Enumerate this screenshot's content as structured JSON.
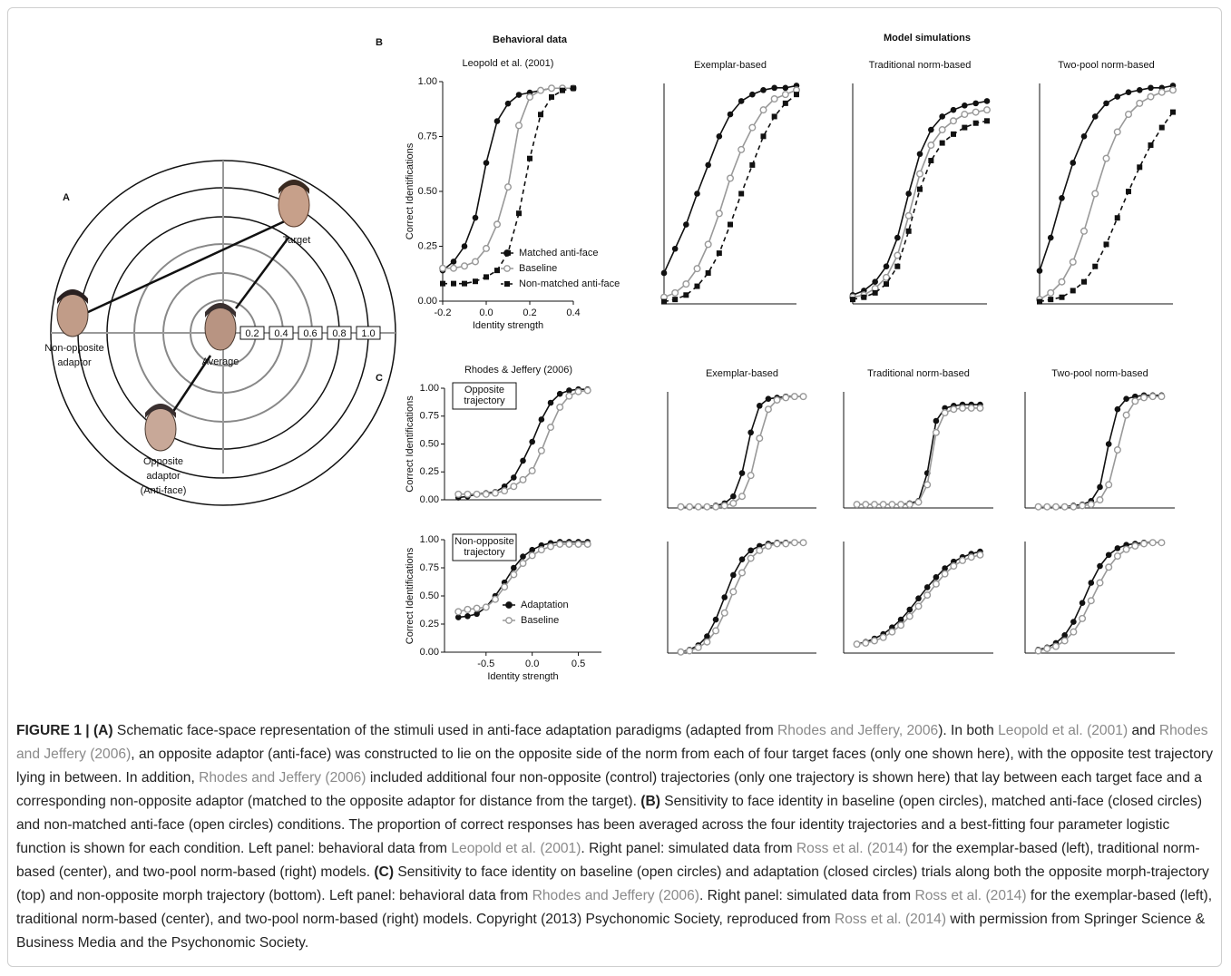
{
  "panel_a": {
    "label": "A",
    "rings": [
      "0.2",
      "0.4",
      "0.6",
      "0.8",
      "1.0"
    ],
    "target": [
      "Target"
    ],
    "average": [
      "Average"
    ],
    "non_opposite": [
      "Non-opposite",
      "adaptor"
    ],
    "opposite": [
      "Opposite",
      "adaptor",
      "(Anti-face)"
    ]
  },
  "panel_b": {
    "label": "B",
    "heading_left": "Behavioral data",
    "heading_right": "Model simulations",
    "x": [
      -0.2,
      -0.15,
      -0.1,
      -0.05,
      0,
      0.05,
      0.1,
      0.15,
      0.2,
      0.25,
      0.3,
      0.35,
      0.4
    ],
    "xlim": [
      -0.2,
      0.4
    ],
    "ylim": [
      0,
      1
    ],
    "plots": [
      {
        "title": "Leopold et al. (2001)",
        "ylabel": "Correct Identifications",
        "xlabel": "Identity strength",
        "yticks": [
          {
            "value": 0,
            "label": "0.00"
          },
          {
            "value": 0.25,
            "label": "0.25"
          },
          {
            "value": 0.5,
            "label": "0.50"
          },
          {
            "value": 0.75,
            "label": "0.75"
          },
          {
            "value": 1,
            "label": "1.00"
          }
        ],
        "xticks": [
          -0.2,
          {
            "value": 0,
            "label": "0.0"
          },
          0.2,
          0.4
        ],
        "series": [
          {
            "name": "Matched anti-face",
            "marker": "filled-circle",
            "color": "#111111",
            "dashed": false,
            "values": [
              0.14,
              0.18,
              0.25,
              0.38,
              0.63,
              0.82,
              0.9,
              0.94,
              0.95,
              0.96,
              0.97,
              0.97,
              0.97
            ]
          },
          {
            "name": "Baseline",
            "marker": "open-circle",
            "color": "#999999",
            "dashed": false,
            "values": [
              0.15,
              0.15,
              0.16,
              0.18,
              0.24,
              0.35,
              0.52,
              0.8,
              0.93,
              0.96,
              0.97,
              0.97,
              0.97
            ]
          },
          {
            "name": "Non-matched anti-face",
            "marker": "filled-square",
            "color": "#111111",
            "dashed": true,
            "values": [
              0.08,
              0.08,
              0.08,
              0.09,
              0.11,
              0.14,
              0.22,
              0.4,
              0.65,
              0.85,
              0.93,
              0.96,
              0.97
            ]
          }
        ]
      },
      {
        "title": "Exemplar-based",
        "series": [
          {
            "marker": "filled-circle",
            "color": "#111111",
            "dashed": false,
            "values": [
              0.14,
              0.25,
              0.36,
              0.5,
              0.63,
              0.76,
              0.86,
              0.92,
              0.95,
              0.97,
              0.98,
              0.98,
              0.99
            ]
          },
          {
            "marker": "open-circle",
            "color": "#999999",
            "dashed": false,
            "values": [
              0.03,
              0.05,
              0.09,
              0.16,
              0.27,
              0.41,
              0.57,
              0.7,
              0.8,
              0.88,
              0.93,
              0.95,
              0.97
            ]
          },
          {
            "marker": "filled-square",
            "color": "#111111",
            "dashed": true,
            "values": [
              0.01,
              0.02,
              0.04,
              0.08,
              0.14,
              0.23,
              0.36,
              0.5,
              0.63,
              0.76,
              0.85,
              0.91,
              0.95
            ]
          }
        ]
      },
      {
        "title": "Traditional norm-based",
        "series": [
          {
            "marker": "filled-circle",
            "color": "#111111",
            "dashed": false,
            "values": [
              0.04,
              0.06,
              0.1,
              0.17,
              0.3,
              0.5,
              0.68,
              0.79,
              0.85,
              0.88,
              0.9,
              0.91,
              0.92
            ]
          },
          {
            "marker": "open-circle",
            "color": "#999999",
            "dashed": false,
            "values": [
              0.03,
              0.04,
              0.07,
              0.12,
              0.22,
              0.4,
              0.59,
              0.72,
              0.79,
              0.83,
              0.86,
              0.87,
              0.88
            ]
          },
          {
            "marker": "filled-square",
            "color": "#111111",
            "dashed": true,
            "values": [
              0.02,
              0.03,
              0.05,
              0.09,
              0.17,
              0.33,
              0.52,
              0.65,
              0.73,
              0.77,
              0.8,
              0.82,
              0.83
            ]
          }
        ]
      },
      {
        "title": "Two-pool norm-based",
        "series": [
          {
            "marker": "filled-circle",
            "color": "#111111",
            "dashed": false,
            "values": [
              0.15,
              0.3,
              0.48,
              0.64,
              0.76,
              0.85,
              0.91,
              0.94,
              0.96,
              0.97,
              0.98,
              0.98,
              0.99
            ]
          },
          {
            "marker": "open-circle",
            "color": "#999999",
            "dashed": false,
            "values": [
              0.02,
              0.05,
              0.1,
              0.19,
              0.33,
              0.5,
              0.66,
              0.78,
              0.86,
              0.91,
              0.94,
              0.96,
              0.97
            ]
          },
          {
            "marker": "filled-square",
            "color": "#111111",
            "dashed": true,
            "values": [
              0.01,
              0.02,
              0.03,
              0.06,
              0.1,
              0.17,
              0.27,
              0.39,
              0.51,
              0.62,
              0.72,
              0.8,
              0.87
            ]
          }
        ]
      }
    ]
  },
  "panel_c": {
    "label": "C",
    "x": [
      -0.8,
      -0.7,
      -0.6,
      -0.5,
      -0.4,
      -0.3,
      -0.2,
      -0.1,
      0,
      0.1,
      0.2,
      0.3,
      0.4,
      0.5,
      0.6
    ],
    "xlim": [
      -0.95,
      0.75
    ],
    "ylim": [
      0,
      1
    ],
    "plots": [
      {
        "title": "Rhodes & Jeffery (2006)",
        "ylabel": "Correct Identifications",
        "inset": [
          "Opposite",
          "trajectory"
        ],
        "yticks": [
          {
            "value": 0,
            "label": "0.00"
          },
          {
            "value": 0.25,
            "label": "0.25"
          },
          {
            "value": 0.5,
            "label": "0.50"
          },
          {
            "value": 0.75,
            "label": "0.75"
          },
          {
            "value": 1,
            "label": "1.00"
          }
        ],
        "series": [
          {
            "marker": "filled-circle",
            "color": "#111111",
            "dashed": false,
            "values": [
              0.02,
              0.03,
              0.05,
              0.06,
              0.07,
              0.12,
              0.2,
              0.35,
              0.52,
              0.72,
              0.87,
              0.95,
              0.98,
              0.99,
              0.99
            ]
          },
          {
            "marker": "open-circle",
            "color": "#999999",
            "dashed": false,
            "values": [
              0.05,
              0.05,
              0.05,
              0.05,
              0.06,
              0.08,
              0.12,
              0.18,
              0.26,
              0.44,
              0.65,
              0.83,
              0.93,
              0.97,
              0.98
            ]
          }
        ]
      },
      {
        "title": "Exemplar-based",
        "series": [
          {
            "marker": "filled-circle",
            "color": "#111111",
            "dashed": false,
            "values": [
              0.01,
              0.01,
              0.01,
              0.01,
              0.02,
              0.04,
              0.1,
              0.3,
              0.65,
              0.88,
              0.94,
              0.95,
              0.96,
              0.96,
              0.96
            ]
          },
          {
            "marker": "open-circle",
            "color": "#999999",
            "dashed": false,
            "values": [
              0.01,
              0.01,
              0.01,
              0.01,
              0.01,
              0.02,
              0.04,
              0.1,
              0.28,
              0.6,
              0.85,
              0.93,
              0.95,
              0.96,
              0.96
            ]
          }
        ]
      },
      {
        "title": "Traditional norm-based",
        "series": [
          {
            "marker": "filled-circle",
            "color": "#111111",
            "dashed": false,
            "values": [
              0.03,
              0.03,
              0.03,
              0.03,
              0.03,
              0.03,
              0.04,
              0.06,
              0.3,
              0.75,
              0.86,
              0.88,
              0.89,
              0.89,
              0.89
            ]
          },
          {
            "marker": "open-circle",
            "color": "#999999",
            "dashed": false,
            "values": [
              0.03,
              0.03,
              0.03,
              0.03,
              0.03,
              0.03,
              0.03,
              0.05,
              0.2,
              0.65,
              0.82,
              0.85,
              0.86,
              0.86,
              0.86
            ]
          }
        ]
      },
      {
        "title": "Two-pool norm-based",
        "series": [
          {
            "marker": "filled-circle",
            "color": "#111111",
            "dashed": false,
            "values": [
              0.01,
              0.01,
              0.01,
              0.01,
              0.02,
              0.03,
              0.06,
              0.18,
              0.55,
              0.85,
              0.94,
              0.96,
              0.97,
              0.97,
              0.97
            ]
          },
          {
            "marker": "open-circle",
            "color": "#999999",
            "dashed": false,
            "values": [
              0.01,
              0.01,
              0.01,
              0.01,
              0.01,
              0.02,
              0.03,
              0.07,
              0.2,
              0.5,
              0.8,
              0.92,
              0.95,
              0.96,
              0.96
            ]
          }
        ]
      },
      {
        "ylabel": "Correct Identifications",
        "xlabel": "Identity strength",
        "inset": [
          "Non-opposite",
          "trajectory"
        ],
        "yticks": [
          {
            "value": 0,
            "label": "0.00"
          },
          {
            "value": 0.25,
            "label": "0.25"
          },
          {
            "value": 0.5,
            "label": "0.50"
          },
          {
            "value": 0.75,
            "label": "0.75"
          },
          {
            "value": 1,
            "label": "1.00"
          }
        ],
        "xticks": [
          -0.5,
          {
            "value": 0,
            "label": "0.0"
          },
          0.5
        ],
        "series": [
          {
            "name": "Adaptation",
            "marker": "filled-circle",
            "color": "#111111",
            "dashed": false,
            "values": [
              0.31,
              0.32,
              0.34,
              0.4,
              0.5,
              0.62,
              0.75,
              0.85,
              0.91,
              0.95,
              0.97,
              0.98,
              0.98,
              0.98,
              0.98
            ]
          },
          {
            "name": "Baseline",
            "marker": "open-circle",
            "color": "#999999",
            "dashed": false,
            "values": [
              0.36,
              0.38,
              0.39,
              0.4,
              0.47,
              0.58,
              0.69,
              0.79,
              0.86,
              0.91,
              0.94,
              0.96,
              0.96,
              0.96,
              0.96
            ]
          }
        ]
      },
      {
        "series": [
          {
            "marker": "filled-circle",
            "color": "#111111",
            "dashed": false,
            "values": [
              0.01,
              0.03,
              0.07,
              0.15,
              0.3,
              0.5,
              0.7,
              0.84,
              0.92,
              0.96,
              0.98,
              0.99,
              0.99,
              0.99,
              0.99
            ]
          },
          {
            "marker": "open-circle",
            "color": "#999999",
            "dashed": false,
            "values": [
              0.01,
              0.02,
              0.05,
              0.1,
              0.2,
              0.36,
              0.55,
              0.72,
              0.85,
              0.92,
              0.96,
              0.98,
              0.98,
              0.99,
              0.99
            ]
          }
        ]
      },
      {
        "series": [
          {
            "marker": "filled-circle",
            "color": "#111111",
            "dashed": false,
            "values": [
              0.08,
              0.1,
              0.13,
              0.17,
              0.23,
              0.3,
              0.39,
              0.49,
              0.59,
              0.68,
              0.76,
              0.82,
              0.86,
              0.89,
              0.91
            ]
          },
          {
            "marker": "open-circle",
            "color": "#999999",
            "dashed": false,
            "values": [
              0.08,
              0.09,
              0.11,
              0.14,
              0.19,
              0.25,
              0.33,
              0.42,
              0.52,
              0.62,
              0.71,
              0.78,
              0.83,
              0.86,
              0.88
            ]
          }
        ]
      },
      {
        "series": [
          {
            "marker": "filled-circle",
            "color": "#111111",
            "dashed": false,
            "values": [
              0.03,
              0.05,
              0.09,
              0.16,
              0.28,
              0.45,
              0.63,
              0.78,
              0.88,
              0.94,
              0.97,
              0.98,
              0.99,
              0.99,
              0.99
            ]
          },
          {
            "marker": "open-circle",
            "color": "#999999",
            "dashed": false,
            "values": [
              0.02,
              0.04,
              0.06,
              0.11,
              0.19,
              0.31,
              0.47,
              0.63,
              0.77,
              0.87,
              0.93,
              0.96,
              0.98,
              0.99,
              0.99
            ]
          }
        ]
      }
    ]
  },
  "caption": [
    {
      "kind": "bold",
      "text": "FIGURE 1 | (A)"
    },
    {
      "kind": "plain",
      "text": " Schematic face-space representation of the stimuli used in anti-face adaptation paradigms (adapted from "
    },
    {
      "kind": "link",
      "text": "Rhodes and Jeffery, 2006"
    },
    {
      "kind": "plain",
      "text": "). In both "
    },
    {
      "kind": "link",
      "text": "Leopold et al. (2001)"
    },
    {
      "kind": "plain",
      "text": " and "
    },
    {
      "kind": "link",
      "text": "Rhodes and Jeffery (2006)"
    },
    {
      "kind": "plain",
      "text": ", an opposite adaptor (anti-face) was constructed to lie on the opposite side of the norm from each of four target faces (only one shown here), with the opposite test trajectory lying in between. In addition, "
    },
    {
      "kind": "link",
      "text": "Rhodes and Jeffery (2006)"
    },
    {
      "kind": "plain",
      "text": " included additional four non-opposite (control) trajectories (only one trajectory is shown here) that lay between each target face and a corresponding non-opposite adaptor (matched to the opposite adaptor for distance from the target). "
    },
    {
      "kind": "bold",
      "text": "(B)"
    },
    {
      "kind": "plain",
      "text": " Sensitivity to face identity in baseline (open circles), matched anti-face (closed circles) and non-matched anti-face (open circles) conditions. The proportion of correct responses has been averaged across the four identity trajectories and a best-fitting four parameter logistic function is shown for each condition. Left panel: behavioral data from "
    },
    {
      "kind": "link",
      "text": "Leopold et al. (2001)"
    },
    {
      "kind": "plain",
      "text": ". Right panel: simulated data from "
    },
    {
      "kind": "link",
      "text": "Ross et al. (2014)"
    },
    {
      "kind": "plain",
      "text": " for the exemplar-based (left), traditional norm-based (center), and two-pool norm-based (right) models. "
    },
    {
      "kind": "bold",
      "text": "(C)"
    },
    {
      "kind": "plain",
      "text": " Sensitivity to face identity on baseline (open circles) and adaptation (closed circles) trials along both the opposite morph-trajectory (top) and non-opposite morph trajectory (bottom). Left panel: behavioral data from "
    },
    {
      "kind": "link",
      "text": "Rhodes and Jeffery (2006)"
    },
    {
      "kind": "plain",
      "text": ". Right panel: simulated data from "
    },
    {
      "kind": "link",
      "text": "Ross et al. (2014)"
    },
    {
      "kind": "plain",
      "text": " for the exemplar-based (left), traditional norm-based (center), and two-pool norm-based (right) models. Copyright (2013) Psychonomic Society, reproduced from "
    },
    {
      "kind": "link",
      "text": "Ross et al. (2014)"
    },
    {
      "kind": "plain",
      "text": " with permission from Springer Science & Business Media and the Psychonomic Society."
    }
  ]
}
